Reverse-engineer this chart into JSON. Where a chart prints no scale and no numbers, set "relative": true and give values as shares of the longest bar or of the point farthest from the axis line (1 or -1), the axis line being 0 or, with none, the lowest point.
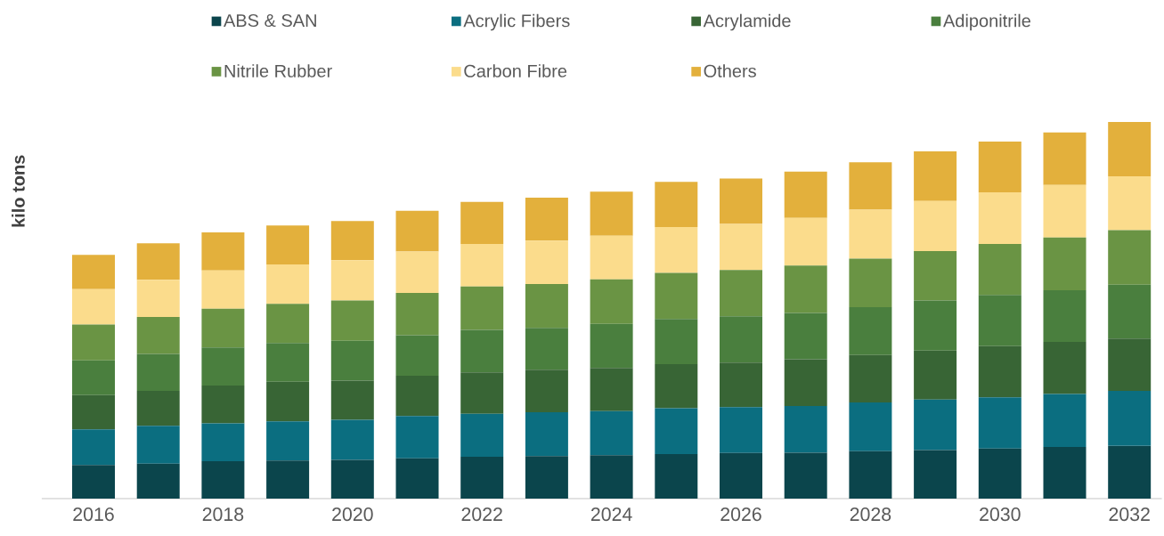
{
  "chart_data": {
    "type": "bar",
    "stacked": true,
    "relative": true,
    "ylabel": "kilo tons",
    "legend": "top",
    "categories": [
      "2016",
      null,
      "2018",
      null,
      "2020",
      null,
      "2022",
      null,
      "2024",
      null,
      "2026",
      null,
      "2028",
      null,
      "2030",
      null,
      "2032"
    ],
    "series": [
      {
        "name": "ABS & SAN",
        "color": "#0b454c",
        "values": [
          0.089,
          0.093,
          0.099,
          0.101,
          0.103,
          0.107,
          0.111,
          0.113,
          0.115,
          0.118,
          0.121,
          0.122,
          0.126,
          0.129,
          0.133,
          0.137,
          0.14
        ]
      },
      {
        "name": "Acrylic Fibers",
        "color": "#0b6e80",
        "values": [
          0.095,
          0.1,
          0.101,
          0.104,
          0.106,
          0.112,
          0.114,
          0.116,
          0.117,
          0.122,
          0.122,
          0.124,
          0.129,
          0.134,
          0.136,
          0.141,
          0.146
        ]
      },
      {
        "name": "Acrylamide",
        "color": "#386535",
        "values": [
          0.091,
          0.093,
          0.1,
          0.105,
          0.104,
          0.107,
          0.11,
          0.113,
          0.115,
          0.117,
          0.118,
          0.124,
          0.126,
          0.13,
          0.136,
          0.138,
          0.139
        ]
      },
      {
        "name": "Adiponitrile",
        "color": "#4a7f3e",
        "values": [
          0.092,
          0.098,
          0.101,
          0.103,
          0.106,
          0.108,
          0.113,
          0.111,
          0.117,
          0.12,
          0.123,
          0.123,
          0.127,
          0.133,
          0.136,
          0.137,
          0.143
        ]
      },
      {
        "name": "Nitrile Rubber",
        "color": "#6a9444",
        "values": [
          0.095,
          0.098,
          0.103,
          0.104,
          0.107,
          0.112,
          0.115,
          0.117,
          0.118,
          0.122,
          0.123,
          0.126,
          0.129,
          0.131,
          0.135,
          0.14,
          0.145
        ]
      },
      {
        "name": "Carbon Fibre",
        "color": "#fbdc8c",
        "values": [
          0.094,
          0.099,
          0.102,
          0.105,
          0.107,
          0.11,
          0.113,
          0.115,
          0.116,
          0.122,
          0.122,
          0.126,
          0.13,
          0.133,
          0.137,
          0.14,
          0.143
        ]
      },
      {
        "name": "Others",
        "color": "#e3b03c",
        "values": [
          0.091,
          0.097,
          0.101,
          0.103,
          0.104,
          0.108,
          0.112,
          0.114,
          0.117,
          0.12,
          0.121,
          0.123,
          0.126,
          0.132,
          0.135,
          0.139,
          0.144
        ]
      }
    ]
  }
}
